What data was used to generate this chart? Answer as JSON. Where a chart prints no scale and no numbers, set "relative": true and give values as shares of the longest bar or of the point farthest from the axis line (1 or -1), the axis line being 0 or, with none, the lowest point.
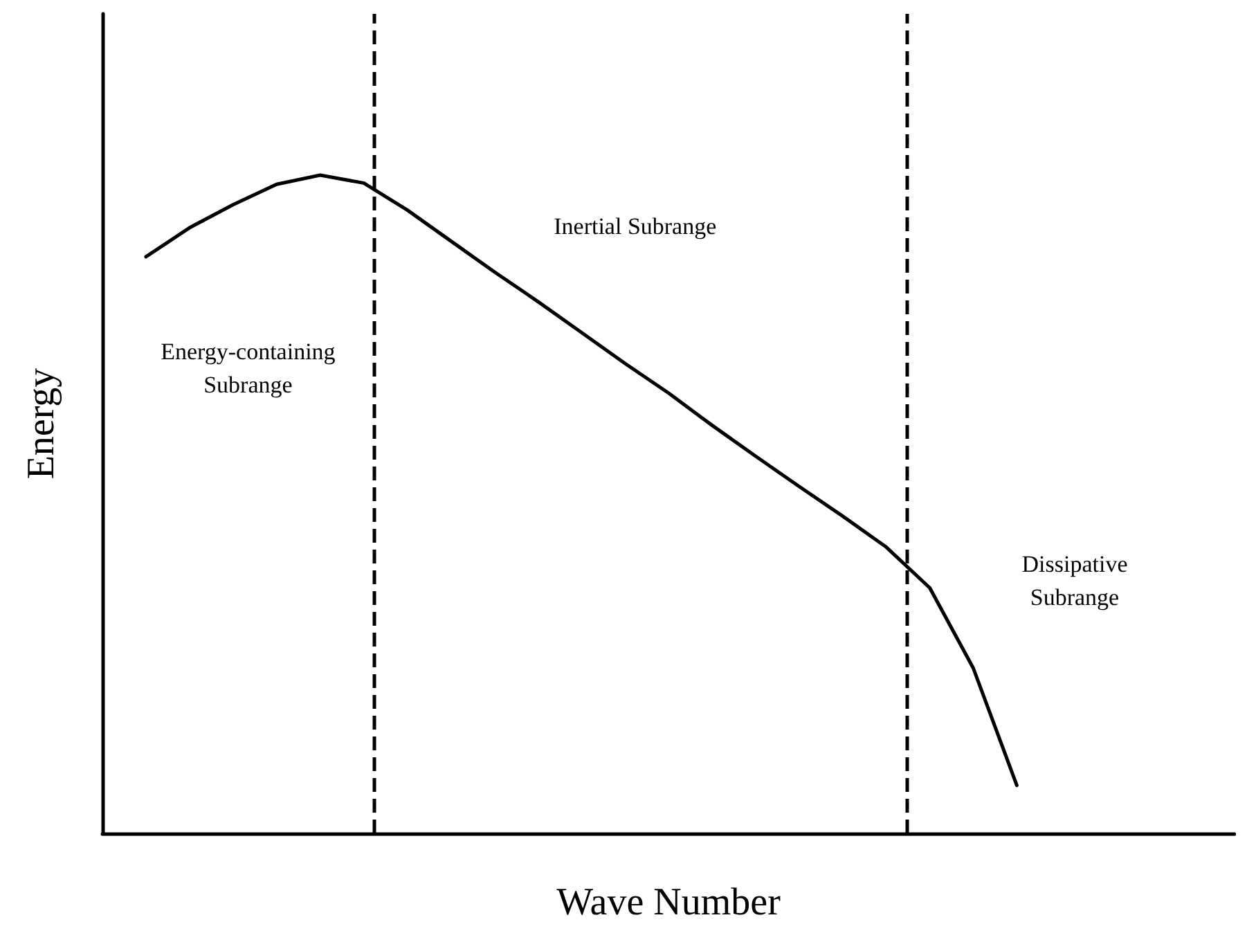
{
  "chart_data": {
    "type": "line",
    "xlabel": "Wave Number",
    "ylabel": "Energy",
    "relative": true,
    "tick_labels": false,
    "grid": false,
    "marker": "none",
    "line_style": "solid",
    "categories": [
      null,
      null,
      null,
      null,
      null,
      null,
      null,
      null,
      null,
      null,
      null,
      null,
      null,
      null,
      null,
      null,
      null,
      null,
      null,
      null,
      null,
      null,
      null,
      null,
      null,
      null,
      null
    ],
    "series": [
      {
        "color": "#000000",
        "values": [
          null,
          0.876,
          0.92,
          0.955,
          0.986,
          1,
          0.988,
          0.947,
          0.9,
          0.853,
          0.808,
          0.761,
          0.714,
          0.669,
          0.62,
          0.573,
          0.527,
          0.482,
          0.435,
          0.373,
          0.251,
          0.073,
          null,
          null,
          null,
          null,
          null
        ]
      }
    ],
    "annotations": [
      "Inertial Subrange",
      "Energy-containing\nSubrange",
      "Dissipative\nSubrange"
    ]
  }
}
